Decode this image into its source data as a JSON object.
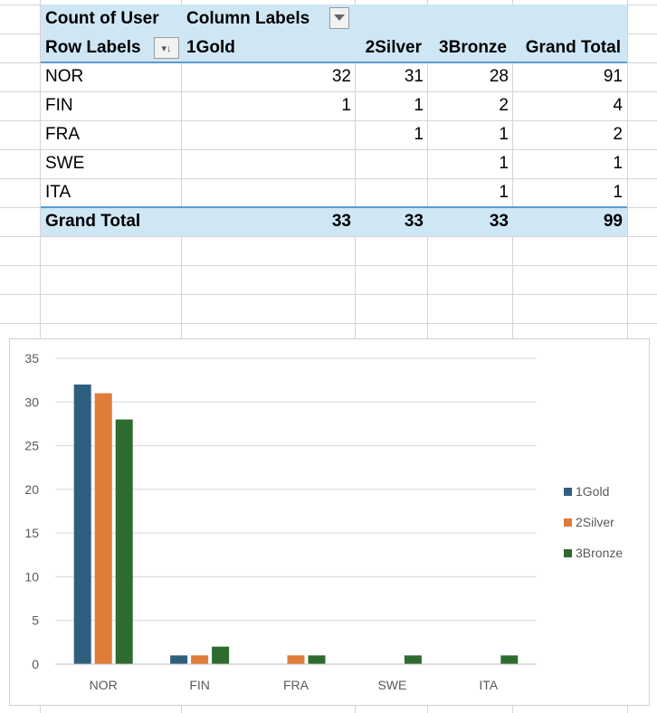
{
  "pivot": {
    "corner_label": "Count of User",
    "column_labels": "Column Labels",
    "row_labels": "Row Labels",
    "columns": [
      "1Gold",
      "2Silver",
      "3Bronze",
      "Grand Total"
    ],
    "rows": [
      {
        "label": "NOR",
        "values": [
          "32",
          "31",
          "28",
          "91"
        ]
      },
      {
        "label": "FIN",
        "values": [
          "1",
          "1",
          "2",
          "4"
        ]
      },
      {
        "label": "FRA",
        "values": [
          "",
          "1",
          "1",
          "2"
        ]
      },
      {
        "label": "SWE",
        "values": [
          "",
          "",
          "1",
          "1"
        ]
      },
      {
        "label": "ITA",
        "values": [
          "",
          "",
          "1",
          "1"
        ]
      }
    ],
    "grand_total": {
      "label": "Grand Total",
      "values": [
        "33",
        "33",
        "33",
        "99"
      ]
    },
    "header_color": "#cfe6f5"
  },
  "chart_data": {
    "type": "bar",
    "categories": [
      "NOR",
      "FIN",
      "FRA",
      "SWE",
      "ITA"
    ],
    "series": [
      {
        "name": "1Gold",
        "values": [
          32,
          1,
          0,
          0,
          0
        ],
        "color": "#2e5f7f"
      },
      {
        "name": "2Silver",
        "values": [
          31,
          1,
          1,
          0,
          0
        ],
        "color": "#e07b39"
      },
      {
        "name": "3Bronze",
        "values": [
          28,
          2,
          1,
          1,
          1
        ],
        "color": "#2e6b2e"
      }
    ],
    "ylim": [
      0,
      35
    ],
    "yticks": [
      0,
      5,
      10,
      15,
      20,
      25,
      30,
      35
    ],
    "grid": true,
    "legend": "right",
    "title": "",
    "xlabel": "",
    "ylabel": ""
  }
}
